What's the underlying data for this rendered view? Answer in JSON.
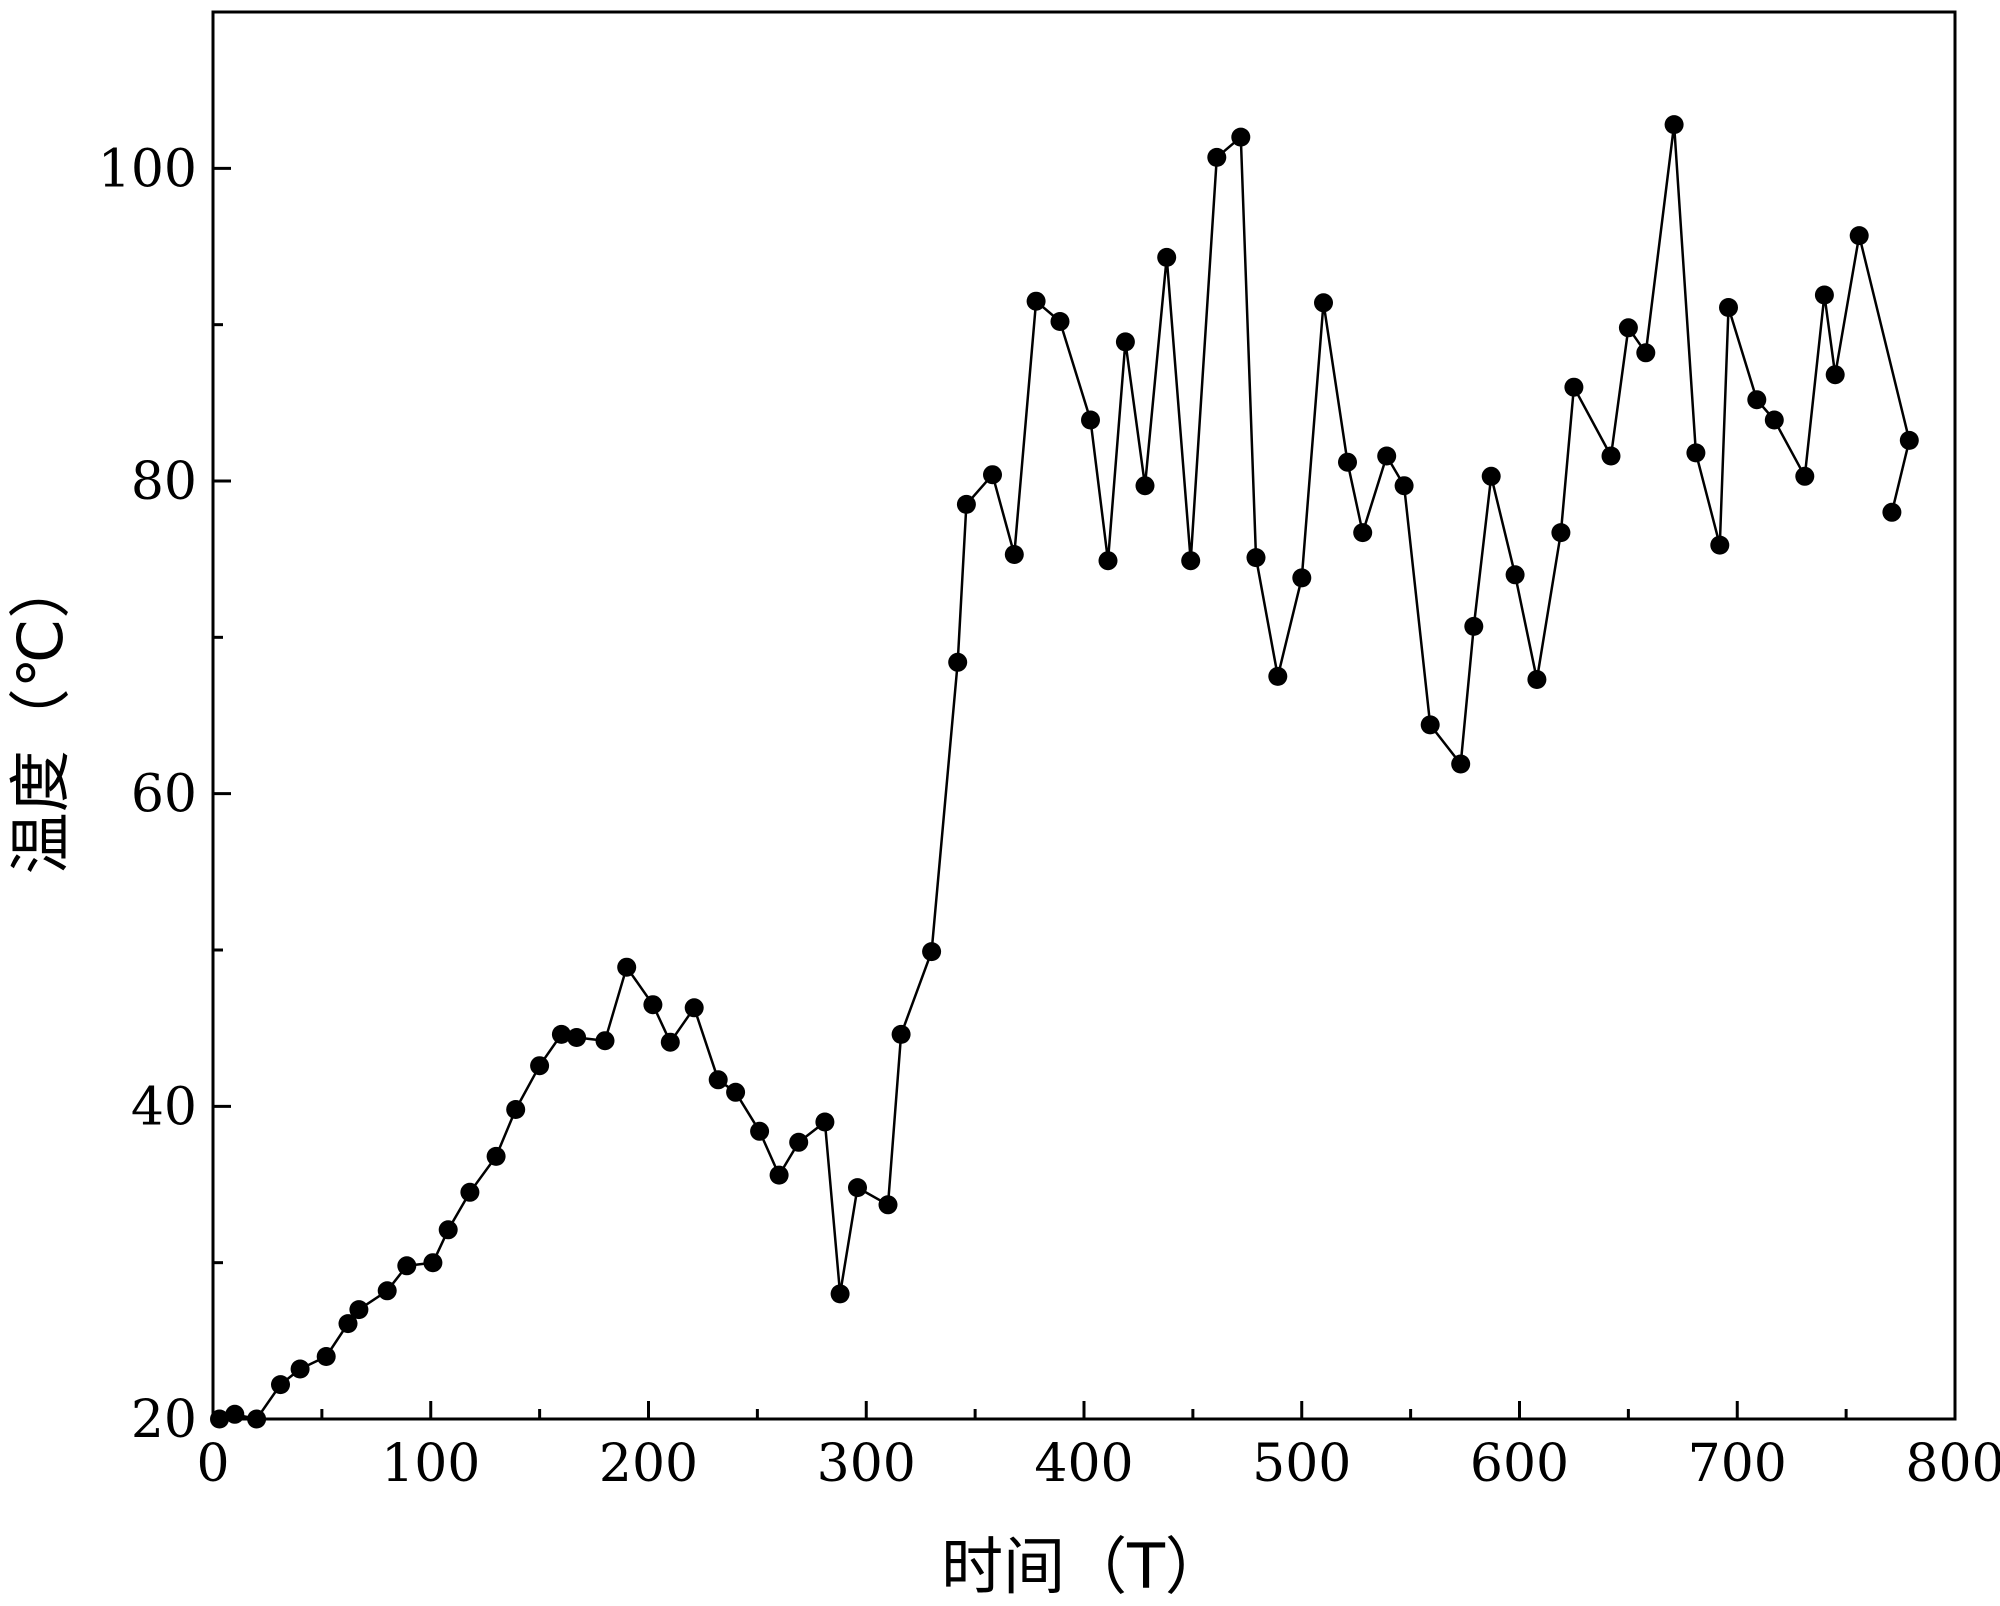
{
  "chart_data": {
    "type": "line",
    "title": "",
    "xlabel": "时间（T）",
    "ylabel": "温度（℃）",
    "xlim": [
      0,
      800
    ],
    "ylim": [
      20,
      110
    ],
    "xticks": [
      0,
      100,
      200,
      300,
      400,
      500,
      600,
      700,
      800
    ],
    "yticks": [
      20,
      40,
      60,
      80,
      100
    ],
    "grid": false,
    "legend": "none",
    "colors": {
      "line": "#000000",
      "marker": "#000000",
      "axis": "#000000",
      "background": "#ffffff"
    },
    "series": [
      {
        "marker": "circle",
        "segments": [
          [
            [
              3,
              20.0
            ],
            [
              10,
              20.3
            ],
            [
              20,
              20.0
            ],
            [
              31,
              22.2
            ],
            [
              40,
              23.2
            ],
            [
              52,
              24.0
            ],
            [
              62,
              26.1
            ],
            [
              67,
              27.0
            ],
            [
              80,
              28.2
            ],
            [
              89,
              29.8
            ],
            [
              101,
              30.0
            ],
            [
              108,
              32.1
            ],
            [
              118,
              34.5
            ],
            [
              130,
              36.8
            ],
            [
              139,
              39.8
            ],
            [
              150,
              42.6
            ],
            [
              160,
              44.6
            ],
            [
              167,
              44.4
            ],
            [
              180,
              44.2
            ],
            [
              190,
              48.9
            ],
            [
              202,
              46.5
            ],
            [
              210,
              44.1
            ],
            [
              221,
              46.3
            ],
            [
              232,
              41.7
            ],
            [
              240,
              40.9
            ],
            [
              251,
              38.4
            ],
            [
              260,
              35.6
            ],
            [
              269,
              37.7
            ],
            [
              281,
              39.0
            ],
            [
              288,
              28.0
            ],
            [
              296,
              34.8
            ],
            [
              310,
              33.7
            ],
            [
              316,
              44.6
            ],
            [
              330,
              49.9
            ],
            [
              342,
              68.4
            ],
            [
              346,
              78.5
            ],
            [
              358,
              80.4
            ],
            [
              368,
              75.3
            ],
            [
              378,
              91.5
            ],
            [
              389,
              90.2
            ],
            [
              403,
              83.9
            ],
            [
              411,
              74.9
            ],
            [
              419,
              88.9
            ],
            [
              428,
              79.7
            ],
            [
              438,
              94.3
            ],
            [
              449,
              74.9
            ],
            [
              461,
              100.7
            ],
            [
              472,
              102.0
            ],
            [
              479,
              75.1
            ],
            [
              489,
              67.5
            ],
            [
              500,
              73.8
            ],
            [
              510,
              91.4
            ],
            [
              521,
              81.2
            ],
            [
              528,
              76.7
            ],
            [
              539,
              81.6
            ],
            [
              547,
              79.7
            ],
            [
              559,
              64.4
            ],
            [
              573,
              61.9
            ],
            [
              579,
              70.7
            ],
            [
              587,
              80.3
            ],
            [
              598,
              74.0
            ],
            [
              608,
              67.3
            ],
            [
              619,
              76.7
            ],
            [
              625,
              86.0
            ],
            [
              642,
              81.6
            ],
            [
              650,
              89.8
            ],
            [
              658,
              88.2
            ],
            [
              671,
              102.8
            ],
            [
              681,
              81.8
            ],
            [
              692,
              75.9
            ],
            [
              696,
              91.1
            ],
            [
              709,
              85.2
            ],
            [
              717,
              83.9
            ],
            [
              731,
              80.3
            ],
            [
              740,
              91.9
            ],
            [
              745,
              86.8
            ],
            [
              756,
              95.7
            ],
            [
              779,
              82.6
            ]
          ],
          [
            [
              771,
              78.0
            ],
            [
              779,
              82.6
            ]
          ]
        ]
      }
    ]
  }
}
